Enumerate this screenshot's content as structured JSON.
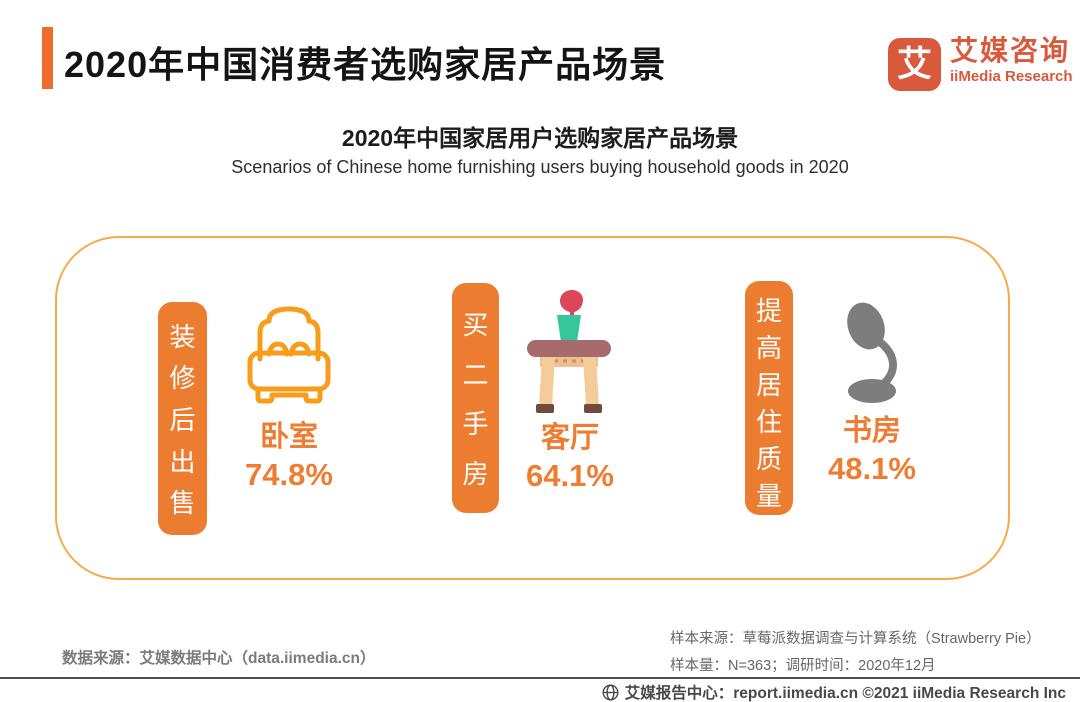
{
  "header": {
    "title": "2020年中国消费者选购家居产品场景",
    "logo": {
      "glyph": "艾",
      "brand_cn": "艾媒咨询",
      "brand_en": "iiMedia Research"
    }
  },
  "chart": {
    "title": "2020年中国家居用户选购家居产品场景",
    "subtitle_en": "Scenarios of Chinese home furnishing users buying household goods in 2020"
  },
  "chart_data": {
    "type": "bar",
    "style": "pictograph-infographic",
    "title": "2020年中国家居用户选购家居产品场景",
    "subtitle": "Scenarios of Chinese home furnishing users buying household goods in 2020",
    "categories": [
      "卧室",
      "客厅",
      "书房"
    ],
    "values": [
      74.8,
      64.1,
      48.1
    ],
    "unit": "%",
    "scenario_labels": [
      "装修后出售",
      "买二手房",
      "提高居住质量"
    ],
    "icons": [
      "bed-icon",
      "table-icon",
      "lamp-icon"
    ]
  },
  "groups": [
    {
      "scenario": "装修后出售",
      "room": "卧室",
      "value": "74.8%",
      "icon": "bed-icon"
    },
    {
      "scenario": "买二手房",
      "room": "客厅",
      "value": "64.1%",
      "icon": "table-icon"
    },
    {
      "scenario": "提高居住质量",
      "room": "书房",
      "value": "48.1%",
      "icon": "lamp-icon"
    }
  ],
  "sources": {
    "data_source": "数据来源：艾媒数据中心（data.iimedia.cn）",
    "sample_source": "样本来源：草莓派数据调查与计算系统（Strawberry Pie）",
    "sample_info": "样本量：N=363；调研时间：2020年12月"
  },
  "footer": {
    "text": "艾媒报告中心：report.iimedia.cn  ©2021  iiMedia Research Inc"
  },
  "palette": {
    "accent_orange": "#EF6C2D",
    "tag_orange": "#EC7C30",
    "panel_border_orange": "#F9A84C",
    "stat_text_orange": "#EE7D32",
    "bed_outline_orange": "#F79C1B",
    "logo_red": "#D8593B",
    "lamp_gray": "#7D7D7D",
    "table_top_mauve": "#A76A6D",
    "table_leg_tan": "#F4CC9A",
    "table_foot_brown": "#6F4B3E",
    "pot_teal": "#35C79B",
    "flower_red": "#DD4558",
    "footer_gray": "#4f4f4f"
  }
}
